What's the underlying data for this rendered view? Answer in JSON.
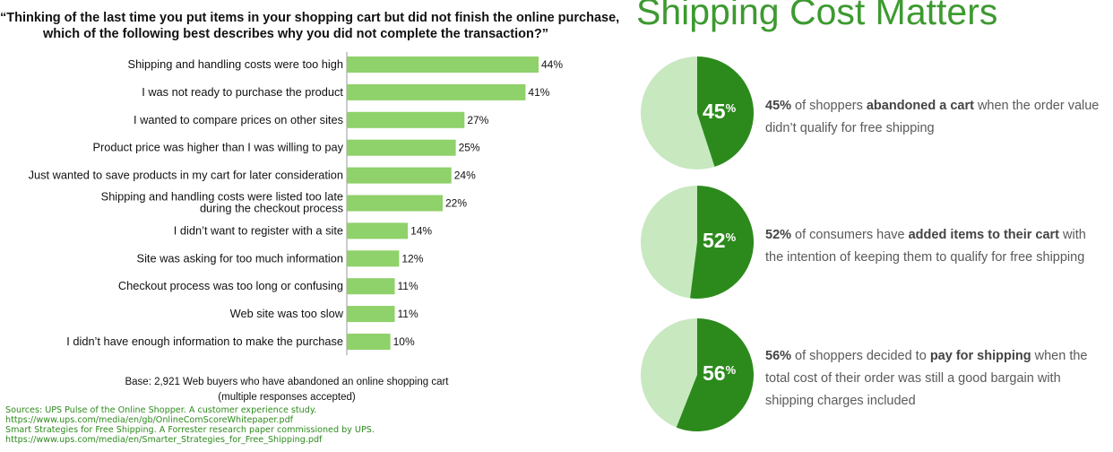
{
  "question": {
    "line1": "“Thinking of the last time you put items in your shopping cart but did not finish the online purchase,",
    "line2": "which of the following best describes why you did not complete the transaction?”"
  },
  "chart_data": [
    {
      "type": "bar",
      "orientation": "horizontal",
      "categories": [
        [
          "Shipping and handling costs were too high"
        ],
        [
          "I was not ready to purchase the product"
        ],
        [
          "I wanted to compare prices on other sites"
        ],
        [
          "Product price was higher than I was willing to pay"
        ],
        [
          "Just wanted to save products in my cart for later consideration"
        ],
        [
          "Shipping and handling costs were listed too late",
          "during the checkout process"
        ],
        [
          "I didn’t want to register with a site"
        ],
        [
          "Site was asking for too much information"
        ],
        [
          "Checkout process was too long or confusing"
        ],
        [
          "Web site was too slow"
        ],
        [
          "I didn’t have enough information to make the purchase"
        ]
      ],
      "values": [
        44,
        41,
        27,
        25,
        24,
        22,
        14,
        12,
        11,
        11,
        10
      ],
      "value_labels": [
        "44%",
        "41%",
        "27%",
        "25%",
        "24%",
        "22%",
        "14%",
        "12%",
        "11%",
        "11%",
        "10%"
      ],
      "unit": "%",
      "bar_color": "#8fd16a",
      "xlim": [
        0,
        44
      ]
    },
    {
      "type": "pie",
      "slices": [
        {
          "label": "45%",
          "value": 45
        },
        {
          "label": "",
          "value": 55
        }
      ],
      "colors": [
        "#2c8a1c",
        "#c8e8c0"
      ]
    },
    {
      "type": "pie",
      "slices": [
        {
          "label": "52%",
          "value": 52
        },
        {
          "label": "",
          "value": 48
        }
      ],
      "colors": [
        "#2c8a1c",
        "#c8e8c0"
      ]
    },
    {
      "type": "pie",
      "slices": [
        {
          "label": "56%",
          "value": 56
        },
        {
          "label": "",
          "value": 44
        }
      ],
      "colors": [
        "#2c8a1c",
        "#c8e8c0"
      ]
    }
  ],
  "base_note": {
    "line1": "Base: 2,921 Web buyers who have abandoned an online shopping cart",
    "line2": "(multiple responses accepted)"
  },
  "sources": [
    "Sources: UPS Pulse of the Online Shopper. A customer experience study.",
    "https://www.ups.com/media/en/gb/OnlineComScoreWhitepaper.pdf",
    "Smart Strategies for Free Shipping. A Forrester research paper commissioned by UPS.",
    "https://www.ups.com/media/en/Smarter_Strategies_for_Free_Shipping.pdf"
  ],
  "right_title": "Shipping Cost Matters",
  "stats": [
    {
      "number": "45",
      "unit": "%",
      "lead": "45%",
      "t1": " of shoppers ",
      "bold": "abandoned a cart",
      "t2": " when the order value didn’t qualify for free shipping"
    },
    {
      "number": "52",
      "unit": "%",
      "lead": "52%",
      "t1": " of consumers have ",
      "bold": "added items to their cart",
      "t2": " with the intention of keeping them to qualify for free shipping"
    },
    {
      "number": "56",
      "unit": "%",
      "lead": "56%",
      "t1": " of shoppers decided to ",
      "bold": "pay for shipping",
      "t2": " when the total cost of their order was still a good bargain with shipping charges included"
    }
  ],
  "colors": {
    "pie_dark": "#2c8a1c",
    "pie_light": "#c8e8c0",
    "title_green": "#3d9a30",
    "bar": "#8fd16a",
    "source_green": "#2e8b1e"
  }
}
